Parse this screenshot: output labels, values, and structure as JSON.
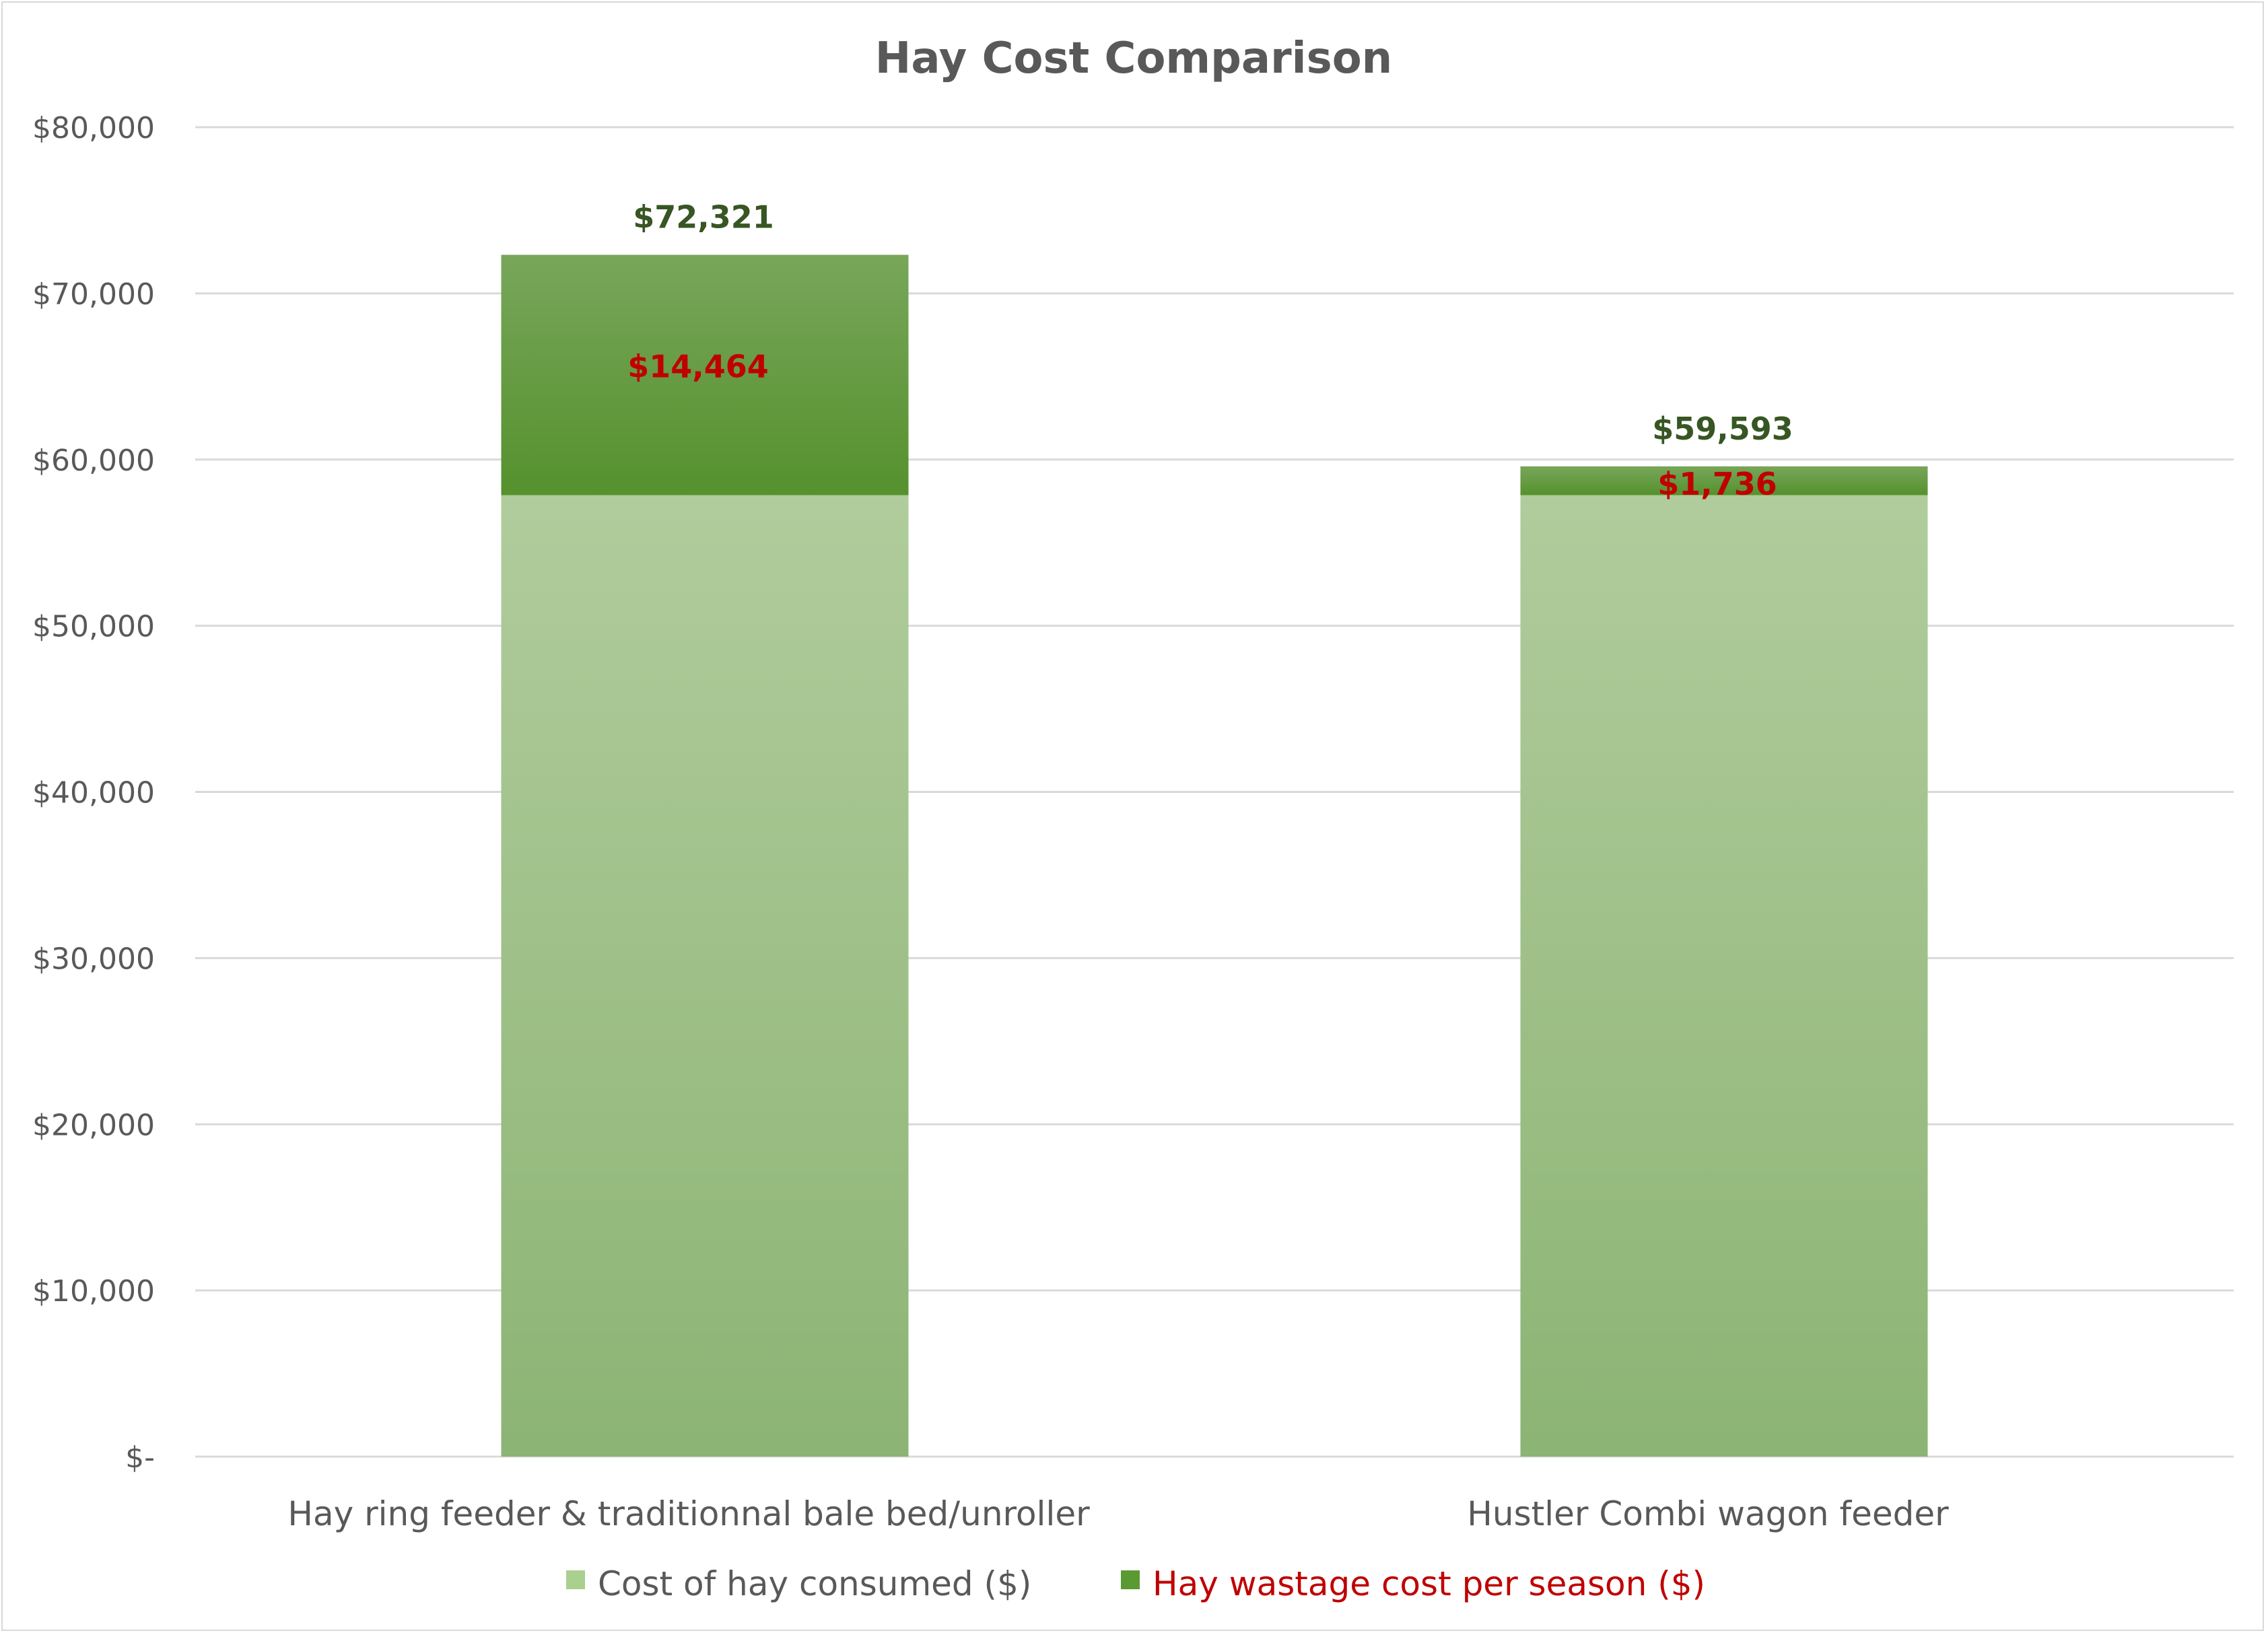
{
  "chart_data": {
    "type": "bar",
    "stacked": true,
    "title": "Hay Cost Comparison",
    "xlabel": "",
    "ylabel": "",
    "ylim": [
      0,
      80000
    ],
    "yticks": [
      {
        "value": 0,
        "label": "$-"
      },
      {
        "value": 10000,
        "label": "$10,000"
      },
      {
        "value": 20000,
        "label": "$20,000"
      },
      {
        "value": 30000,
        "label": "$30,000"
      },
      {
        "value": 40000,
        "label": "$40,000"
      },
      {
        "value": 50000,
        "label": "$50,000"
      },
      {
        "value": 60000,
        "label": "$60,000"
      },
      {
        "value": 70000,
        "label": "$70,000"
      },
      {
        "value": 80000,
        "label": "$80,000"
      }
    ],
    "grid": true,
    "legend_position": "bottom",
    "categories": [
      "Hay ring feeder & traditionnal bale bed/unroller",
      "Hustler Combi wagon feeder"
    ],
    "series": [
      {
        "name": "Cost of hay consumed ($)",
        "values": [
          57857,
          57857
        ],
        "color": "#a9d08e"
      },
      {
        "name": "Hay wastage cost per season ($)",
        "values": [
          14464,
          1736
        ],
        "data_labels": [
          "$14,464",
          "$1,736"
        ],
        "color": "#5a9a32",
        "legend_text_color": "#c00000"
      }
    ],
    "totals": [
      72321,
      59593
    ],
    "total_labels": [
      "$72,321",
      "$59,593"
    ]
  }
}
